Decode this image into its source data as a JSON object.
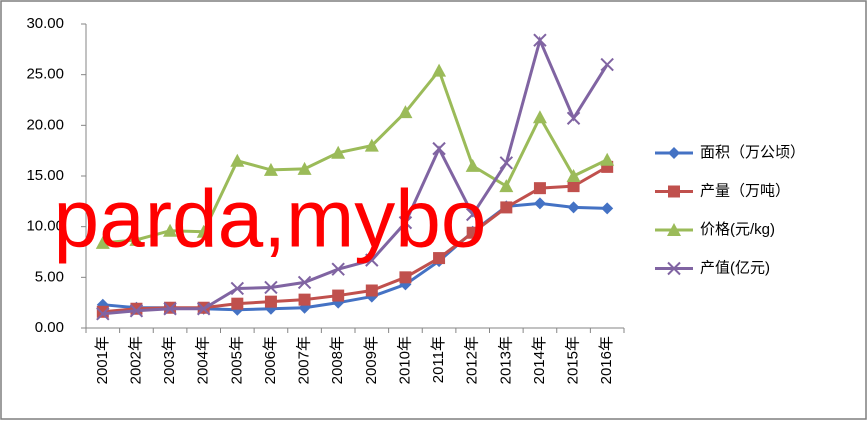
{
  "chart_data": {
    "type": "line",
    "categories": [
      "2001年",
      "2002年",
      "2003年",
      "2004年",
      "2005年",
      "2006年",
      "2007年",
      "2008年",
      "2009年",
      "2010年",
      "2011年",
      "2012年",
      "2013年",
      "2014年",
      "2015年",
      "2016年"
    ],
    "series": [
      {
        "name": "面积（万公顷）",
        "color": "#4472c4",
        "marker": "diamond",
        "values": [
          2.3,
          2.0,
          2.0,
          1.9,
          1.8,
          1.9,
          2.0,
          2.5,
          3.1,
          4.3,
          6.6,
          9.5,
          12.0,
          12.3,
          11.9,
          11.8
        ]
      },
      {
        "name": "产量（万吨）",
        "color": "#c0504d",
        "marker": "square",
        "values": [
          1.6,
          1.9,
          2.0,
          2.0,
          2.4,
          2.6,
          2.8,
          3.2,
          3.7,
          5.0,
          6.9,
          9.4,
          11.9,
          13.8,
          14.0,
          15.9
        ]
      },
      {
        "name": "价格(元/kg)",
        "color": "#9bbb59",
        "marker": "triangle",
        "values": [
          8.4,
          8.7,
          9.6,
          9.5,
          16.5,
          15.6,
          15.7,
          17.3,
          18.0,
          21.3,
          25.4,
          16.0,
          14.0,
          20.8,
          15.0,
          16.6
        ]
      },
      {
        "name": "产值(亿元)",
        "color": "#8064a2",
        "marker": "x",
        "values": [
          1.4,
          1.7,
          1.9,
          1.9,
          3.9,
          4.0,
          4.5,
          5.8,
          6.7,
          10.4,
          17.7,
          11.2,
          16.3,
          28.4,
          20.7,
          26.0
        ]
      }
    ],
    "ylim": [
      0,
      30
    ],
    "yticks": [
      {
        "value": 0,
        "label": "0.00"
      },
      {
        "value": 5,
        "label": "5.00"
      },
      {
        "value": 10,
        "label": "10.00"
      },
      {
        "value": 15,
        "label": "15.00"
      },
      {
        "value": 20,
        "label": "20.00"
      },
      {
        "value": 25,
        "label": "25.00"
      },
      {
        "value": 30,
        "label": "30.00"
      }
    ],
    "grid": false,
    "legend": "right",
    "annotation": "parda,mybo"
  }
}
